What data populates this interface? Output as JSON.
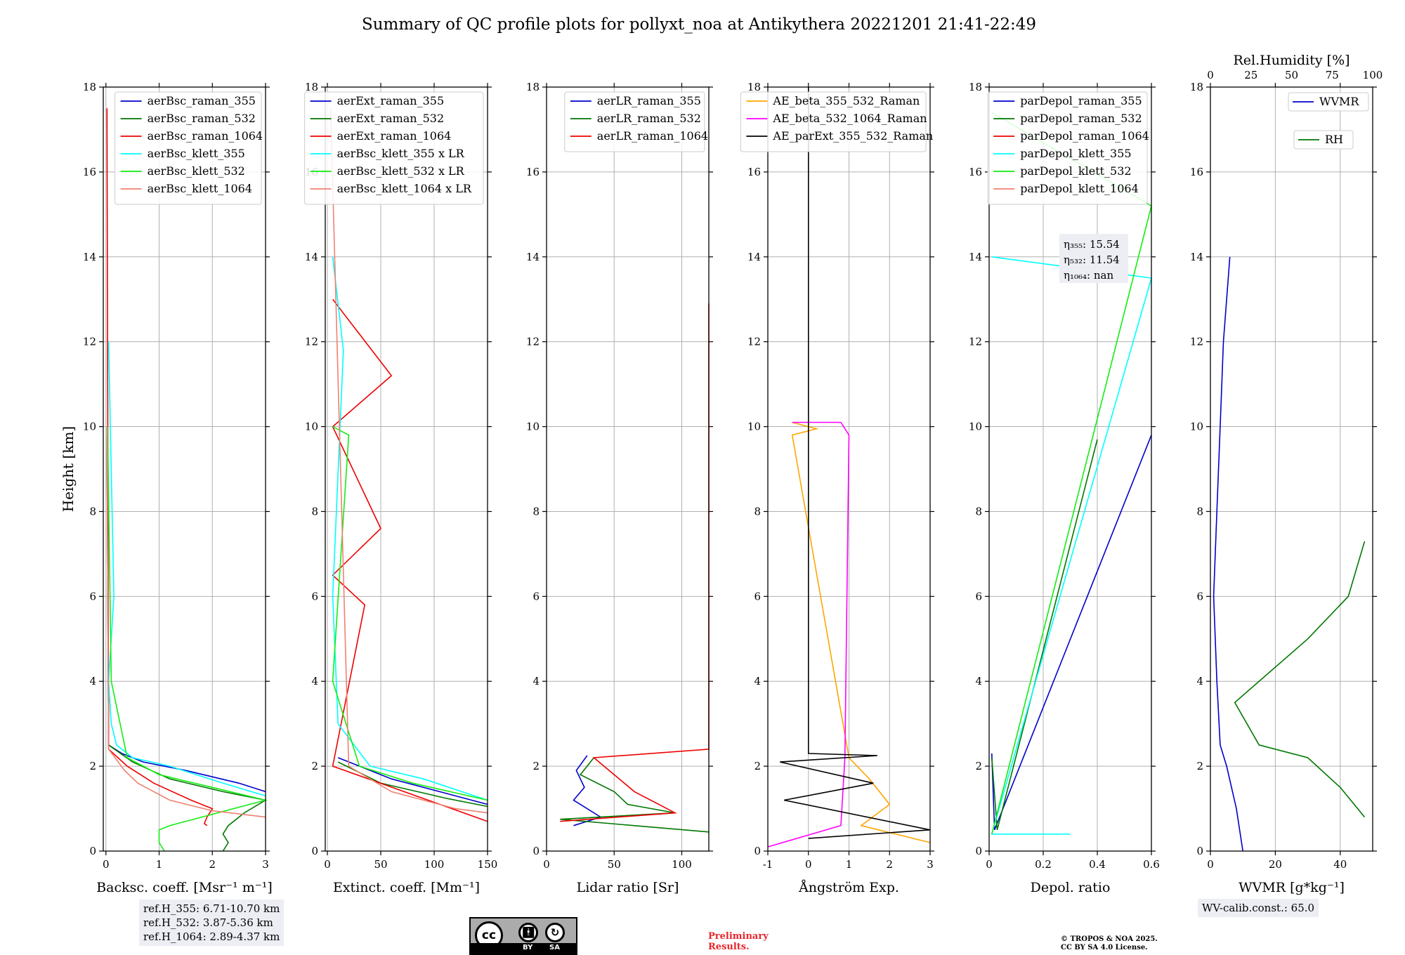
{
  "suptitle": "Summary of QC profile plots for pollyxt_noa at Antikythera 20221201 21:41-22:49",
  "ref_heights": [
    "ref.H_355: 6.71-10.70 km",
    "ref.H_532: 3.87-5.36 km",
    "ref.H_1064: 2.89-4.37 km"
  ],
  "wv_calib": "WV-calib.const.: 65.0",
  "license_badge": {
    "left": "cc",
    "by": "BY",
    "sa": "SA"
  },
  "preliminary": [
    "Preliminary",
    "Results."
  ],
  "copyright": [
    "© TROPOS & NOA 2025.",
    "CC BY SA 4.0 License."
  ],
  "colors": {
    "blue": "#0000cc",
    "green": "#007700",
    "red": "#ee0000",
    "cyan": "#00ffff",
    "lime": "#11ee11",
    "salmon": "#f08070",
    "orange": "#ffa500",
    "magenta": "#ff00ff",
    "black": "#000000",
    "grid": "#b0b0b0"
  },
  "chart_data": [
    {
      "type": "line",
      "xlabel": "Backsc. coeff. [Msr⁻¹ m⁻¹]",
      "ylabel": "Height [km]",
      "xlim": [
        -0.05,
        3
      ],
      "ylim": [
        0,
        18
      ],
      "xticks": [
        0,
        1,
        2,
        3
      ],
      "yticks": [
        0,
        2,
        4,
        6,
        8,
        10,
        12,
        14,
        16,
        18
      ],
      "grid": true,
      "legend_loc": "upper-right",
      "series": [
        {
          "name": "aerBsc_raman_355",
          "color": "#0000cc",
          "x": [
            0.02,
            0.05,
            0.3,
            0.7,
            1.5,
            2.5,
            3.0
          ],
          "y": [
            9.7,
            2.5,
            2.3,
            2.1,
            1.9,
            1.6,
            1.4
          ]
        },
        {
          "name": "aerBsc_raman_532",
          "color": "#007700",
          "x": [
            0.02,
            0.05,
            0.5,
            1.2,
            2.2,
            3.0,
            2.6,
            2.3,
            2.2,
            2.3,
            2.2
          ],
          "y": [
            9.8,
            2.5,
            2.1,
            1.7,
            1.4,
            1.2,
            0.9,
            0.6,
            0.4,
            0.2,
            0.0
          ]
        },
        {
          "name": "aerBsc_raman_1064",
          "color": "#ee0000",
          "x": [
            0.02,
            0.05,
            0.4,
            0.9,
            1.6,
            2.0,
            1.9,
            1.85,
            1.9
          ],
          "y": [
            17.5,
            2.4,
            2.0,
            1.6,
            1.2,
            1.0,
            0.8,
            0.65,
            0.6
          ]
        },
        {
          "name": "aerBsc_klett_355",
          "color": "#00ffff",
          "x": [
            0.05,
            0.15,
            0.05,
            0.1,
            0.2,
            0.5,
            1.2,
            2.2,
            3.0
          ],
          "y": [
            12,
            6,
            4,
            3,
            2.5,
            2.2,
            2.0,
            1.6,
            1.3
          ]
        },
        {
          "name": "aerBsc_klett_532",
          "color": "#11ee11",
          "x": [
            0.03,
            0.1,
            0.4,
            1.0,
            2.0,
            3.0,
            1.2,
            1.0,
            1.0,
            1.1
          ],
          "y": [
            10,
            4,
            2.2,
            1.8,
            1.5,
            1.2,
            0.6,
            0.5,
            0.2,
            0.0
          ]
        },
        {
          "name": "aerBsc_klett_1064",
          "color": "#f08070",
          "x": [
            0.02,
            0.05,
            0.35,
            0.6,
            1.2,
            2.0,
            3.0
          ],
          "y": [
            10,
            2.4,
            1.9,
            1.6,
            1.2,
            0.95,
            0.8
          ]
        }
      ]
    },
    {
      "type": "line",
      "xlabel": "Extinct. coeff. [Mm⁻¹]",
      "xlim": [
        -2,
        150
      ],
      "ylim": [
        0,
        18
      ],
      "xticks": [
        0,
        50,
        100,
        150
      ],
      "yticks": [
        0,
        2,
        4,
        6,
        8,
        10,
        12,
        14,
        16,
        18
      ],
      "grid": true,
      "legend_loc": "upper-right",
      "series": [
        {
          "name": "aerExt_raman_355",
          "color": "#0000cc",
          "x": [
            10,
            60,
            120,
            150
          ],
          "y": [
            2.2,
            1.7,
            1.3,
            1.1
          ]
        },
        {
          "name": "aerExt_raman_532",
          "color": "#007700",
          "x": [
            10,
            50,
            110,
            150
          ],
          "y": [
            2.1,
            1.6,
            1.25,
            1.05
          ]
        },
        {
          "name": "aerExt_raman_1064",
          "color": "#ee0000",
          "x": [
            5,
            60,
            5,
            50,
            5,
            35,
            5,
            150
          ],
          "y": [
            13.0,
            11.2,
            10.0,
            7.6,
            6.5,
            5.8,
            2.0,
            0.7
          ]
        },
        {
          "name": "aerBsc_klett_355 x LR",
          "color": "#00ffff",
          "x": [
            5,
            15,
            5,
            10,
            40,
            90,
            150
          ],
          "y": [
            14,
            11.8,
            6,
            3,
            2.0,
            1.7,
            1.2
          ]
        },
        {
          "name": "aerBsc_klett_532 x LR",
          "color": "#11ee11",
          "x": [
            5,
            20,
            5,
            30,
            80,
            150
          ],
          "y": [
            10,
            9.8,
            4,
            2.0,
            1.6,
            1.2
          ]
        },
        {
          "name": "aerBsc_klett_1064 x LR",
          "color": "#f08070",
          "x": [
            3,
            20,
            60,
            120,
            150
          ],
          "y": [
            17.5,
            2.0,
            1.4,
            1.0,
            0.9
          ]
        }
      ]
    },
    {
      "type": "line",
      "xlabel": "Lidar ratio [Sr]",
      "xlim": [
        0,
        120
      ],
      "ylim": [
        0,
        18
      ],
      "xticks": [
        0,
        50,
        100
      ],
      "yticks": [
        0,
        2,
        4,
        6,
        8,
        10,
        12,
        14,
        16,
        18
      ],
      "grid": true,
      "legend_loc": "upper-right",
      "series": [
        {
          "name": "aerLR_raman_355",
          "color": "#0000cc",
          "x": [
            30,
            22,
            28,
            20,
            40,
            20
          ],
          "y": [
            2.25,
            1.9,
            1.5,
            1.2,
            0.8,
            0.6
          ]
        },
        {
          "name": "aerLR_raman_532",
          "color": "#007700",
          "x": [
            35,
            25,
            50,
            60,
            95,
            10,
            120
          ],
          "y": [
            2.2,
            1.8,
            1.4,
            1.1,
            0.9,
            0.75,
            0.45
          ]
        },
        {
          "name": "aerLR_raman_1064",
          "color": "#ee0000",
          "x": [
            120,
            120,
            35,
            65,
            95,
            10
          ],
          "y": [
            12.9,
            2.4,
            2.2,
            1.4,
            0.9,
            0.7
          ]
        }
      ]
    },
    {
      "type": "line",
      "xlabel": "Ångström Exp.",
      "xlim": [
        -1,
        3
      ],
      "ylim": [
        0,
        18
      ],
      "xticks": [
        -1,
        0,
        1,
        2,
        3
      ],
      "yticks": [
        0,
        2,
        4,
        6,
        8,
        10,
        12,
        14,
        16,
        18
      ],
      "grid": true,
      "legend_loc": "upper-right",
      "series": [
        {
          "name": "AE_beta_355_532_Raman",
          "color": "#ffa500",
          "x": [
            -0.4,
            0.2,
            -0.4,
            1.0,
            1.5,
            2.0,
            1.3,
            3.0
          ],
          "y": [
            10.1,
            9.95,
            9.8,
            2.2,
            1.7,
            1.1,
            0.6,
            0.2
          ]
        },
        {
          "name": "AE_beta_532_1064_Raman",
          "color": "#ff00ff",
          "x": [
            -0.4,
            0.8,
            1.0,
            0.9,
            0.8,
            -1.0
          ],
          "y": [
            10.1,
            10.1,
            9.8,
            2.2,
            0.6,
            0.1
          ]
        },
        {
          "name": "AE_parExt_355_532_Raman",
          "color": "#000000",
          "x": [
            0,
            0,
            1.7,
            -0.7,
            1.6,
            -0.6,
            3.0,
            0
          ],
          "y": [
            18,
            2.3,
            2.25,
            2.1,
            1.6,
            1.2,
            0.5,
            0.3
          ]
        }
      ]
    },
    {
      "type": "line",
      "xlabel": "Depol. ratio",
      "xlim": [
        0,
        0.6
      ],
      "ylim": [
        0,
        18
      ],
      "xticks": [
        0.0,
        0.2,
        0.4,
        0.6
      ],
      "yticks": [
        0,
        2,
        4,
        6,
        8,
        10,
        12,
        14,
        16,
        18
      ],
      "grid": true,
      "legend_loc": "upper-right",
      "annotations": [
        "η₃₅₅: 15.54",
        "η₅₃₂: 11.54",
        "η₁₀₆₄: nan"
      ],
      "series": [
        {
          "name": "parDepol_raman_355",
          "color": "#0000cc",
          "x": [
            0.01,
            0.02,
            0.6
          ],
          "y": [
            2.3,
            0.5,
            9.8
          ]
        },
        {
          "name": "parDepol_raman_532",
          "color": "#007700",
          "x": [
            0.01,
            0.03,
            0.4
          ],
          "y": [
            2.2,
            0.5,
            9.7
          ]
        },
        {
          "name": "parDepol_raman_1064",
          "color": "#ee0000",
          "x": [],
          "y": []
        },
        {
          "name": "parDepol_klett_355",
          "color": "#00ffff",
          "x": [
            0.01,
            0.6,
            0.01,
            0.3
          ],
          "y": [
            14,
            13.5,
            0.4,
            0.4
          ]
        },
        {
          "name": "parDepol_klett_532",
          "color": "#11ee11",
          "x": [
            0.01,
            0.6,
            0.01
          ],
          "y": [
            17.4,
            15.2,
            0.4
          ]
        },
        {
          "name": "parDepol_klett_1064",
          "color": "#f08070",
          "x": [],
          "y": []
        }
      ]
    },
    {
      "type": "line",
      "xlabel": "WVMR [g*kg⁻¹]",
      "x2label": "Rel.Humidity [%]",
      "xlim": [
        0,
        50
      ],
      "x2lim": [
        0,
        100
      ],
      "ylim": [
        0,
        18
      ],
      "xticks": [
        0,
        20,
        40
      ],
      "x2ticks": [
        0,
        25,
        50,
        75,
        100
      ],
      "yticks": [
        0,
        2,
        4,
        6,
        8,
        10,
        12,
        14,
        16,
        18
      ],
      "grid": true,
      "legend_loc": "upper-right",
      "series": [
        {
          "name": "WVMR",
          "color": "#0000cc",
          "x": [
            10,
            8,
            5,
            3,
            2,
            1,
            2,
            3,
            4,
            6
          ],
          "y": [
            0,
            1,
            2,
            2.5,
            4,
            6,
            8,
            10,
            12,
            14
          ]
        },
        {
          "name": "RH",
          "color": "#007700",
          "x": [
            95,
            80,
            60,
            30,
            15,
            60,
            85,
            95
          ],
          "y": [
            0.8,
            1.5,
            2.2,
            2.5,
            3.5,
            5.0,
            6.0,
            7.3
          ]
        }
      ]
    }
  ]
}
